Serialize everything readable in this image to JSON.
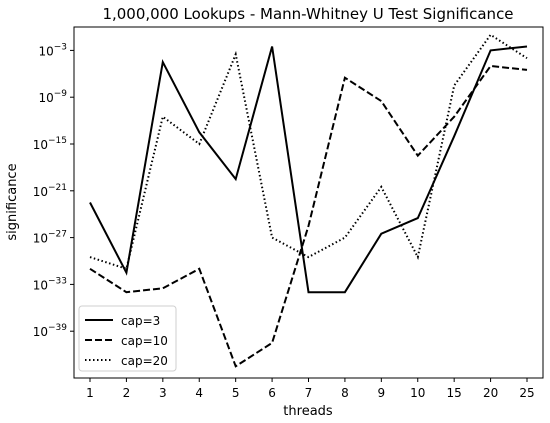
{
  "chart_data": {
    "type": "line",
    "title": "1,000,000 Lookups - Mann-Whitney U Test Significance",
    "xlabel": "threads",
    "ylabel": "significance",
    "y_scale": "log",
    "ylim_exponent": [
      -45,
      0
    ],
    "x": [
      "1",
      "2",
      "3",
      "4",
      "5",
      "6",
      "7",
      "8",
      "9",
      "10",
      "15",
      "20",
      "25"
    ],
    "y_tick_exponents": [
      -3,
      -9,
      -15,
      -21,
      -27,
      -33,
      -39
    ],
    "y_tick_base": "10",
    "grid": false,
    "legend": "lower-left",
    "series": [
      {
        "name": "cap=3",
        "style": "solid",
        "color": "#000000",
        "log10_values": [
          -22.5,
          -31.5,
          -4.5,
          -13.5,
          -19.5,
          -2.5,
          -34.0,
          -34.0,
          -26.5,
          -24.5,
          -14.0,
          -3.0,
          -2.5
        ]
      },
      {
        "name": "cap=10",
        "style": "dashed",
        "color": "#000000",
        "log10_values": [
          -31.0,
          -34.0,
          -33.5,
          -31.0,
          -43.5,
          -40.5,
          -25.5,
          -6.5,
          -9.5,
          -16.5,
          -11.5,
          -5.0,
          -5.5
        ]
      },
      {
        "name": "cap=20",
        "style": "dotted",
        "color": "#000000",
        "log10_values": [
          -29.5,
          -31.0,
          -11.5,
          -15.0,
          -3.5,
          -27.0,
          -29.5,
          -27.0,
          -20.5,
          -29.5,
          -7.5,
          -1.0,
          -4.0
        ]
      }
    ]
  }
}
